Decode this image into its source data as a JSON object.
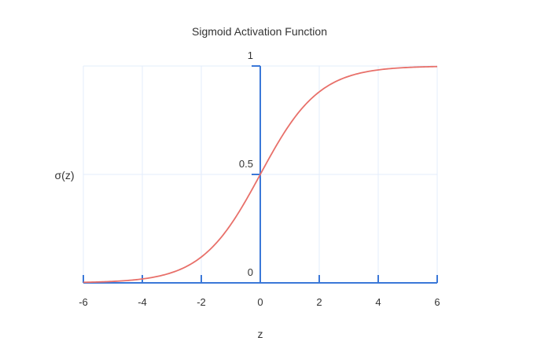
{
  "chart_data": {
    "type": "line",
    "title": "Sigmoid Activation Function",
    "xlabel": "z",
    "ylabel": "σ(z)",
    "xlim": [
      -6,
      6
    ],
    "ylim": [
      0,
      1
    ],
    "x_ticks": [
      -6,
      -4,
      -2,
      0,
      2,
      4,
      6
    ],
    "x_tick_labels": [
      "-6",
      "-4",
      "-2",
      "0",
      "2",
      "4",
      "6"
    ],
    "y_ticks": [
      0,
      0.5,
      1
    ],
    "y_tick_labels": [
      "0",
      "0.5",
      "1"
    ],
    "grid": true,
    "function": "1/(1+exp(-z))",
    "series": [
      {
        "x": [
          -6,
          -5,
          -4,
          -3,
          -2,
          -1,
          0,
          1,
          2,
          3,
          4,
          5,
          6
        ],
        "values": [
          0.0025,
          0.0067,
          0.018,
          0.047,
          0.119,
          0.269,
          0.5,
          0.731,
          0.881,
          0.953,
          0.982,
          0.9933,
          0.9975
        ]
      }
    ],
    "colors": {
      "line": "#e8706a",
      "axis": "#3b78d8",
      "grid": "#e3ecfb"
    }
  }
}
